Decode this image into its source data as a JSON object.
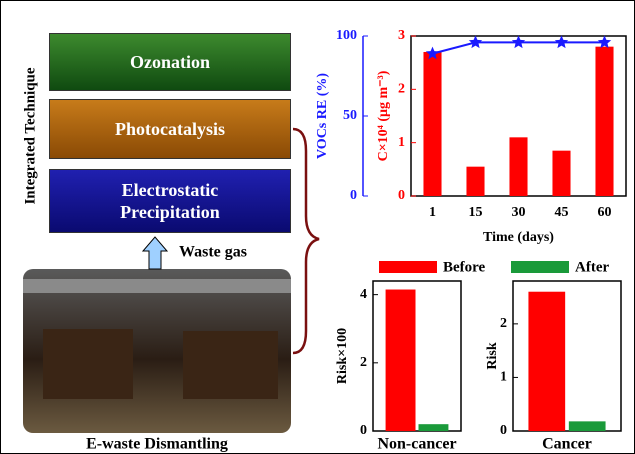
{
  "diagram": {
    "side_label": "Integrated Technique",
    "stages": [
      "Ozonation",
      "Photocatalysis",
      "Electrostatic Precipitation"
    ],
    "input": "Waste gas",
    "source": "E-waste Dismantling"
  },
  "chart_data": [
    {
      "type": "bar",
      "categories": [
        "1",
        "15",
        "30",
        "45",
        "60"
      ],
      "x_label": "Time (days)",
      "y_label": "C×10⁴ (μg m⁻³)",
      "y2_label": "VOCs RE (%)",
      "ylim": [
        0,
        3
      ],
      "yticks": [
        0,
        1,
        2,
        3
      ],
      "y2lim": [
        0,
        100
      ],
      "y2ticks": [
        0,
        50,
        100
      ],
      "series": [
        {
          "color": "#ff0000",
          "values": [
            2.7,
            0.55,
            1.1,
            0.85,
            2.8
          ]
        },
        {
          "color": "#1a1aff",
          "axis": "y2",
          "marker": "star",
          "values": [
            89,
            96,
            96,
            96,
            96
          ]
        }
      ]
    },
    {
      "type": "bar",
      "categories": [
        "Non-cancer"
      ],
      "y_label": "Risk×100",
      "ylim": [
        0,
        4.4
      ],
      "yticks": [
        0,
        2,
        4
      ],
      "legend": true,
      "series": [
        {
          "name": "Before",
          "color": "#ff0000",
          "values": [
            4.15
          ]
        },
        {
          "name": "After",
          "color": "#1a9a3a",
          "values": [
            0.2
          ]
        }
      ]
    },
    {
      "type": "bar",
      "categories": [
        "Cancer"
      ],
      "y_label": "Risk",
      "ylim": [
        0,
        2.8
      ],
      "yticks": [
        0,
        1,
        2
      ],
      "series": [
        {
          "color": "#ff0000",
          "values": [
            2.6
          ]
        },
        {
          "color": "#1a9a3a",
          "values": [
            0.18
          ]
        }
      ]
    }
  ]
}
